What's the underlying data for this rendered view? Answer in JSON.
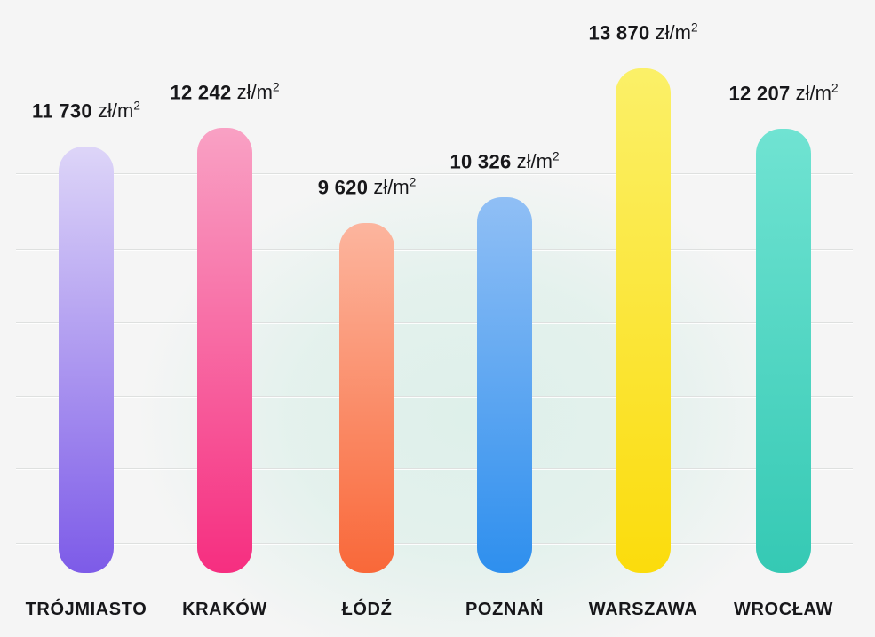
{
  "chart_data": {
    "type": "bar",
    "categories": [
      "TRÓJMIASTO",
      "KRAKÓW",
      "ŁÓDŹ",
      "POZNAŃ",
      "WARSZAWA",
      "WROCŁAW"
    ],
    "values": [
      11730,
      12242,
      9620,
      10326,
      13870,
      12207
    ],
    "value_labels": [
      "11 730",
      "12 242",
      "9 620",
      "10 326",
      "13 870",
      "12 207"
    ],
    "unit_base": "zł/m",
    "unit_sup": "2",
    "unit_display": "zł/m²",
    "title": "",
    "xlabel": "",
    "ylabel": "",
    "ylim": [
      0,
      14500
    ],
    "grid": true,
    "gridline_count": 6,
    "legend_position": "none",
    "bar_gradients": [
      {
        "top": "#DDD5F8",
        "bottom": "#7D5BE8"
      },
      {
        "top": "#F9A1C4",
        "bottom": "#F62E80"
      },
      {
        "top": "#FCB59E",
        "bottom": "#F96839"
      },
      {
        "top": "#90BFF5",
        "bottom": "#2E8FEE"
      },
      {
        "top": "#FBF068",
        "bottom": "#FBDC0C"
      },
      {
        "top": "#70E3D2",
        "bottom": "#35C9B4"
      }
    ],
    "colors": {
      "text": "#17171A",
      "background": "#F5F5F5",
      "background_glow": "#DEF0EA",
      "gridline": "#DEE0DF"
    }
  }
}
